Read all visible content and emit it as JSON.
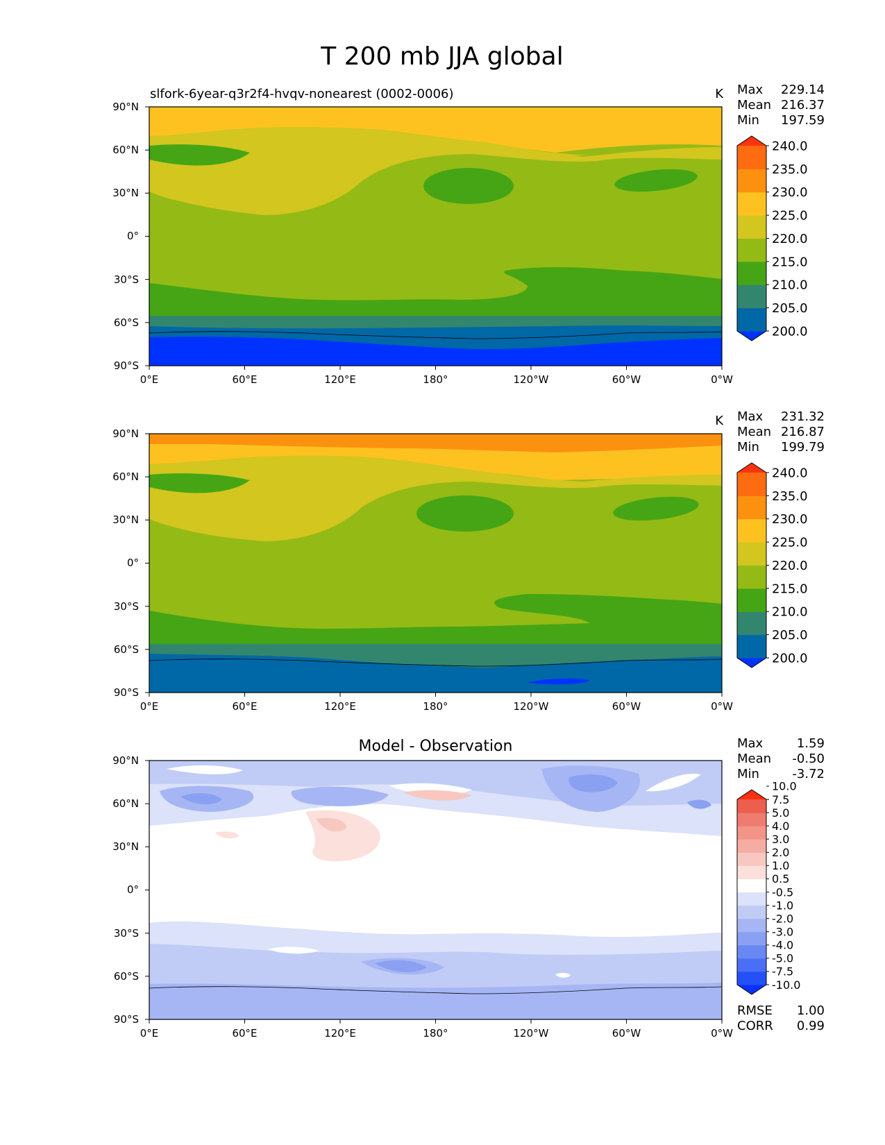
{
  "figure_title": "T 200 mb JJA global",
  "chart_data": [
    {
      "type": "contour-map",
      "title_left": "slfork-6year-q3r2f4-hvqv-nonearest (0002-0006)",
      "title_center": "",
      "units": "K",
      "stats": {
        "max_label": "Max",
        "max": "229.14",
        "mean_label": "Mean",
        "mean": "216.37",
        "min_label": "Min",
        "min": "197.59"
      },
      "colorbar": {
        "colors": [
          "#0032ff",
          "#0068a6",
          "#32866e",
          "#46a514",
          "#94ba16",
          "#d2c61f",
          "#fdc220",
          "#fc9110",
          "#fd6c10",
          "#ff3310"
        ],
        "labels": [
          "200.0",
          "205.0",
          "210.0",
          "215.0",
          "220.0",
          "225.0",
          "230.0",
          "235.0",
          "240.0"
        ]
      },
      "xticks": [
        "0°E",
        "60°E",
        "120°E",
        "180°",
        "120°W",
        "60°W",
        "0°W"
      ],
      "yticks": [
        "90°N",
        "60°N",
        "30°N",
        "0°",
        "30°S",
        "60°S",
        "90°S"
      ],
      "xlim": [
        0,
        360
      ],
      "ylim": [
        -90,
        90
      ]
    },
    {
      "type": "contour-map",
      "title_left": "",
      "title_center": "",
      "units": "K",
      "stats": {
        "max_label": "Max",
        "max": "231.32",
        "mean_label": "Mean",
        "mean": "216.87",
        "min_label": "Min",
        "min": "199.79"
      },
      "colorbar": {
        "colors": [
          "#0032ff",
          "#0068a6",
          "#32866e",
          "#46a514",
          "#94ba16",
          "#d2c61f",
          "#fdc220",
          "#fc9110",
          "#fd6c10",
          "#ff3310"
        ],
        "labels": [
          "200.0",
          "205.0",
          "210.0",
          "215.0",
          "220.0",
          "225.0",
          "230.0",
          "235.0",
          "240.0"
        ]
      },
      "xticks": [
        "0°E",
        "60°E",
        "120°E",
        "180°",
        "120°W",
        "60°W",
        "0°W"
      ],
      "yticks": [
        "90°N",
        "60°N",
        "30°N",
        "0°",
        "30°S",
        "60°S",
        "90°S"
      ],
      "xlim": [
        0,
        360
      ],
      "ylim": [
        -90,
        90
      ]
    },
    {
      "type": "contour-map",
      "title_left": "",
      "title_center": "Model - Observation",
      "units": "",
      "stats": {
        "max_label": "Max",
        "max": "1.59",
        "mean_label": "Mean",
        "mean": "-0.50",
        "min_label": "Min",
        "min": "-3.72"
      },
      "colorbar": {
        "colors": [
          "#0a32ff",
          "#2450f8",
          "#4a6ef5",
          "#6a88f3",
          "#8aa0f2",
          "#a6b6f4",
          "#c0ccf6",
          "#dbe2f9",
          "#ffffff",
          "#fbe0dc",
          "#f8c8c0",
          "#f5aca2",
          "#f29488",
          "#ef7c6e",
          "#ec5e4e",
          "#ff3010"
        ],
        "labels": [
          "-10.0",
          "-7.5",
          "-5.0",
          "-4.0",
          "-3.0",
          "-2.0",
          "-1.0",
          "-0.5",
          "0.5",
          "1.0",
          "2.0",
          "3.0",
          "4.0",
          "5.0",
          "7.5",
          "10.0"
        ]
      },
      "rmse_label": "RMSE",
      "rmse": "1.00",
      "corr_label": "CORR",
      "corr": "0.99",
      "xticks": [
        "0°E",
        "60°E",
        "120°E",
        "180°",
        "120°W",
        "60°W",
        "0°W"
      ],
      "yticks": [
        "90°N",
        "60°N",
        "30°N",
        "0°",
        "30°S",
        "60°S",
        "90°S"
      ],
      "xlim": [
        0,
        360
      ],
      "ylim": [
        -90,
        90
      ]
    }
  ]
}
